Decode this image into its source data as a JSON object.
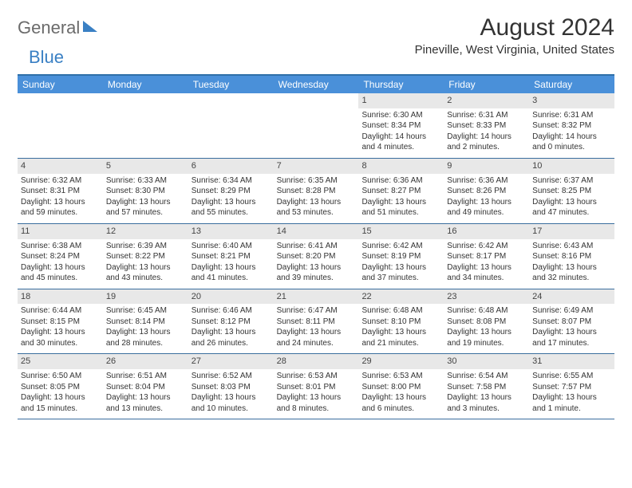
{
  "logo": {
    "part1": "General",
    "part2": "Blue"
  },
  "title": "August 2024",
  "location": "Pineville, West Virginia, United States",
  "colors": {
    "header_bg": "#4a90d9",
    "header_text": "#ffffff",
    "rule": "#3a6e9e",
    "daynum_bg": "#e8e8e8",
    "logo_gray": "#6b6b6b",
    "logo_blue": "#3a80c4"
  },
  "day_headers": [
    "Sunday",
    "Monday",
    "Tuesday",
    "Wednesday",
    "Thursday",
    "Friday",
    "Saturday"
  ],
  "weeks": [
    [
      {
        "empty": true
      },
      {
        "empty": true
      },
      {
        "empty": true
      },
      {
        "empty": true
      },
      {
        "num": "1",
        "sunrise": "Sunrise: 6:30 AM",
        "sunset": "Sunset: 8:34 PM",
        "daylight1": "Daylight: 14 hours",
        "daylight2": "and 4 minutes."
      },
      {
        "num": "2",
        "sunrise": "Sunrise: 6:31 AM",
        "sunset": "Sunset: 8:33 PM",
        "daylight1": "Daylight: 14 hours",
        "daylight2": "and 2 minutes."
      },
      {
        "num": "3",
        "sunrise": "Sunrise: 6:31 AM",
        "sunset": "Sunset: 8:32 PM",
        "daylight1": "Daylight: 14 hours",
        "daylight2": "and 0 minutes."
      }
    ],
    [
      {
        "num": "4",
        "sunrise": "Sunrise: 6:32 AM",
        "sunset": "Sunset: 8:31 PM",
        "daylight1": "Daylight: 13 hours",
        "daylight2": "and 59 minutes."
      },
      {
        "num": "5",
        "sunrise": "Sunrise: 6:33 AM",
        "sunset": "Sunset: 8:30 PM",
        "daylight1": "Daylight: 13 hours",
        "daylight2": "and 57 minutes."
      },
      {
        "num": "6",
        "sunrise": "Sunrise: 6:34 AM",
        "sunset": "Sunset: 8:29 PM",
        "daylight1": "Daylight: 13 hours",
        "daylight2": "and 55 minutes."
      },
      {
        "num": "7",
        "sunrise": "Sunrise: 6:35 AM",
        "sunset": "Sunset: 8:28 PM",
        "daylight1": "Daylight: 13 hours",
        "daylight2": "and 53 minutes."
      },
      {
        "num": "8",
        "sunrise": "Sunrise: 6:36 AM",
        "sunset": "Sunset: 8:27 PM",
        "daylight1": "Daylight: 13 hours",
        "daylight2": "and 51 minutes."
      },
      {
        "num": "9",
        "sunrise": "Sunrise: 6:36 AM",
        "sunset": "Sunset: 8:26 PM",
        "daylight1": "Daylight: 13 hours",
        "daylight2": "and 49 minutes."
      },
      {
        "num": "10",
        "sunrise": "Sunrise: 6:37 AM",
        "sunset": "Sunset: 8:25 PM",
        "daylight1": "Daylight: 13 hours",
        "daylight2": "and 47 minutes."
      }
    ],
    [
      {
        "num": "11",
        "sunrise": "Sunrise: 6:38 AM",
        "sunset": "Sunset: 8:24 PM",
        "daylight1": "Daylight: 13 hours",
        "daylight2": "and 45 minutes."
      },
      {
        "num": "12",
        "sunrise": "Sunrise: 6:39 AM",
        "sunset": "Sunset: 8:22 PM",
        "daylight1": "Daylight: 13 hours",
        "daylight2": "and 43 minutes."
      },
      {
        "num": "13",
        "sunrise": "Sunrise: 6:40 AM",
        "sunset": "Sunset: 8:21 PM",
        "daylight1": "Daylight: 13 hours",
        "daylight2": "and 41 minutes."
      },
      {
        "num": "14",
        "sunrise": "Sunrise: 6:41 AM",
        "sunset": "Sunset: 8:20 PM",
        "daylight1": "Daylight: 13 hours",
        "daylight2": "and 39 minutes."
      },
      {
        "num": "15",
        "sunrise": "Sunrise: 6:42 AM",
        "sunset": "Sunset: 8:19 PM",
        "daylight1": "Daylight: 13 hours",
        "daylight2": "and 37 minutes."
      },
      {
        "num": "16",
        "sunrise": "Sunrise: 6:42 AM",
        "sunset": "Sunset: 8:17 PM",
        "daylight1": "Daylight: 13 hours",
        "daylight2": "and 34 minutes."
      },
      {
        "num": "17",
        "sunrise": "Sunrise: 6:43 AM",
        "sunset": "Sunset: 8:16 PM",
        "daylight1": "Daylight: 13 hours",
        "daylight2": "and 32 minutes."
      }
    ],
    [
      {
        "num": "18",
        "sunrise": "Sunrise: 6:44 AM",
        "sunset": "Sunset: 8:15 PM",
        "daylight1": "Daylight: 13 hours",
        "daylight2": "and 30 minutes."
      },
      {
        "num": "19",
        "sunrise": "Sunrise: 6:45 AM",
        "sunset": "Sunset: 8:14 PM",
        "daylight1": "Daylight: 13 hours",
        "daylight2": "and 28 minutes."
      },
      {
        "num": "20",
        "sunrise": "Sunrise: 6:46 AM",
        "sunset": "Sunset: 8:12 PM",
        "daylight1": "Daylight: 13 hours",
        "daylight2": "and 26 minutes."
      },
      {
        "num": "21",
        "sunrise": "Sunrise: 6:47 AM",
        "sunset": "Sunset: 8:11 PM",
        "daylight1": "Daylight: 13 hours",
        "daylight2": "and 24 minutes."
      },
      {
        "num": "22",
        "sunrise": "Sunrise: 6:48 AM",
        "sunset": "Sunset: 8:10 PM",
        "daylight1": "Daylight: 13 hours",
        "daylight2": "and 21 minutes."
      },
      {
        "num": "23",
        "sunrise": "Sunrise: 6:48 AM",
        "sunset": "Sunset: 8:08 PM",
        "daylight1": "Daylight: 13 hours",
        "daylight2": "and 19 minutes."
      },
      {
        "num": "24",
        "sunrise": "Sunrise: 6:49 AM",
        "sunset": "Sunset: 8:07 PM",
        "daylight1": "Daylight: 13 hours",
        "daylight2": "and 17 minutes."
      }
    ],
    [
      {
        "num": "25",
        "sunrise": "Sunrise: 6:50 AM",
        "sunset": "Sunset: 8:05 PM",
        "daylight1": "Daylight: 13 hours",
        "daylight2": "and 15 minutes."
      },
      {
        "num": "26",
        "sunrise": "Sunrise: 6:51 AM",
        "sunset": "Sunset: 8:04 PM",
        "daylight1": "Daylight: 13 hours",
        "daylight2": "and 13 minutes."
      },
      {
        "num": "27",
        "sunrise": "Sunrise: 6:52 AM",
        "sunset": "Sunset: 8:03 PM",
        "daylight1": "Daylight: 13 hours",
        "daylight2": "and 10 minutes."
      },
      {
        "num": "28",
        "sunrise": "Sunrise: 6:53 AM",
        "sunset": "Sunset: 8:01 PM",
        "daylight1": "Daylight: 13 hours",
        "daylight2": "and 8 minutes."
      },
      {
        "num": "29",
        "sunrise": "Sunrise: 6:53 AM",
        "sunset": "Sunset: 8:00 PM",
        "daylight1": "Daylight: 13 hours",
        "daylight2": "and 6 minutes."
      },
      {
        "num": "30",
        "sunrise": "Sunrise: 6:54 AM",
        "sunset": "Sunset: 7:58 PM",
        "daylight1": "Daylight: 13 hours",
        "daylight2": "and 3 minutes."
      },
      {
        "num": "31",
        "sunrise": "Sunrise: 6:55 AM",
        "sunset": "Sunset: 7:57 PM",
        "daylight1": "Daylight: 13 hours",
        "daylight2": "and 1 minute."
      }
    ]
  ]
}
